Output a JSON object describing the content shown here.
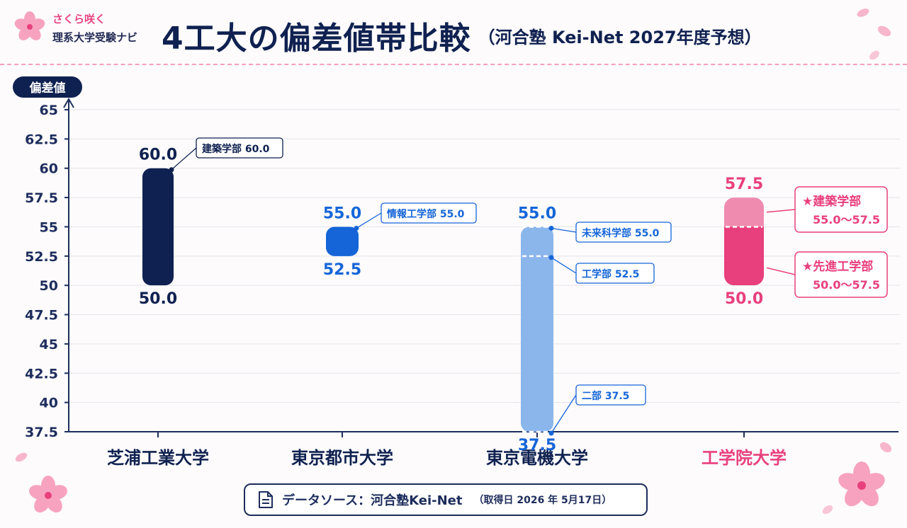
{
  "brand": {
    "tagline": "さくら咲く",
    "name": "理系大学受験ナビ"
  },
  "header": {
    "title": "4工大の偏差値帯比較",
    "subtitle": "（河合塾 Kei-Net 2027年度予想）"
  },
  "source": {
    "icon": "document-icon",
    "label": "データソース：河合塾Kei-Net",
    "date": "（取得日 2026 年 5月17日）"
  },
  "colors": {
    "navy": "#0f2150",
    "blue": "#1565d8",
    "lightblue": "#8bb6ec",
    "pink": "#e8407c",
    "pinklight": "#f08bb0",
    "grid": "#e3e5ec"
  },
  "chart_data": {
    "type": "bar",
    "ylabel": "偏差値",
    "ylim": [
      37.5,
      65
    ],
    "yticks": [
      "65",
      "62.5",
      "60",
      "57.5",
      "55",
      "52.5",
      "50",
      "47.5",
      "45",
      "42.5",
      "40",
      "37.5"
    ],
    "grid": true,
    "categories": [
      {
        "name": "芝浦工業大学",
        "color": "#0f2150",
        "top": 60.0,
        "bottom": 50.0,
        "top_label": "60.0",
        "bottom_label": "50.0",
        "segments": [
          {
            "from": 50.0,
            "to": 60.0,
            "color": "#0f2150"
          }
        ],
        "callouts": [
          {
            "text": "建築学部 60.0",
            "value": 60.0
          }
        ]
      },
      {
        "name": "東京都市大学",
        "color": "#1565d8",
        "top": 55.0,
        "bottom": 52.5,
        "top_label": "55.0",
        "bottom_label": "52.5",
        "segments": [
          {
            "from": 52.5,
            "to": 55.0,
            "color": "#1565d8"
          }
        ],
        "callouts": [
          {
            "text": "情報工学部 55.0",
            "value": 55.0
          }
        ]
      },
      {
        "name": "東京電機大学",
        "color": "#1565d8",
        "top": 55.0,
        "bottom": 37.5,
        "top_label": "55.0",
        "bottom_label": "37.5",
        "segments": [
          {
            "from": 37.5,
            "to": 55.0,
            "color": "#8bb6ec"
          }
        ],
        "dividers": [
          55.0,
          52.5,
          37.5
        ],
        "callouts": [
          {
            "text": "未来科学部 55.0",
            "value": 55.0
          },
          {
            "text": "工学部 52.5",
            "value": 52.5
          },
          {
            "text": "二部 37.5",
            "value": 37.5
          }
        ]
      },
      {
        "name": "工学院大学",
        "color": "#e8407c",
        "top": 57.5,
        "bottom": 50.0,
        "top_label": "57.5",
        "bottom_label": "50.0",
        "segments": [
          {
            "from": 55.0,
            "to": 57.5,
            "color": "#f08bb0"
          },
          {
            "from": 50.0,
            "to": 55.0,
            "color": "#e8407c"
          }
        ],
        "dividers": [
          55.0
        ],
        "callouts": [
          {
            "text": "★建築学部",
            "range": "55.0〜57.5",
            "value": 56.25
          },
          {
            "text": "★先進工学部",
            "range": "50.0〜57.5",
            "value": 52.5
          }
        ]
      }
    ]
  }
}
